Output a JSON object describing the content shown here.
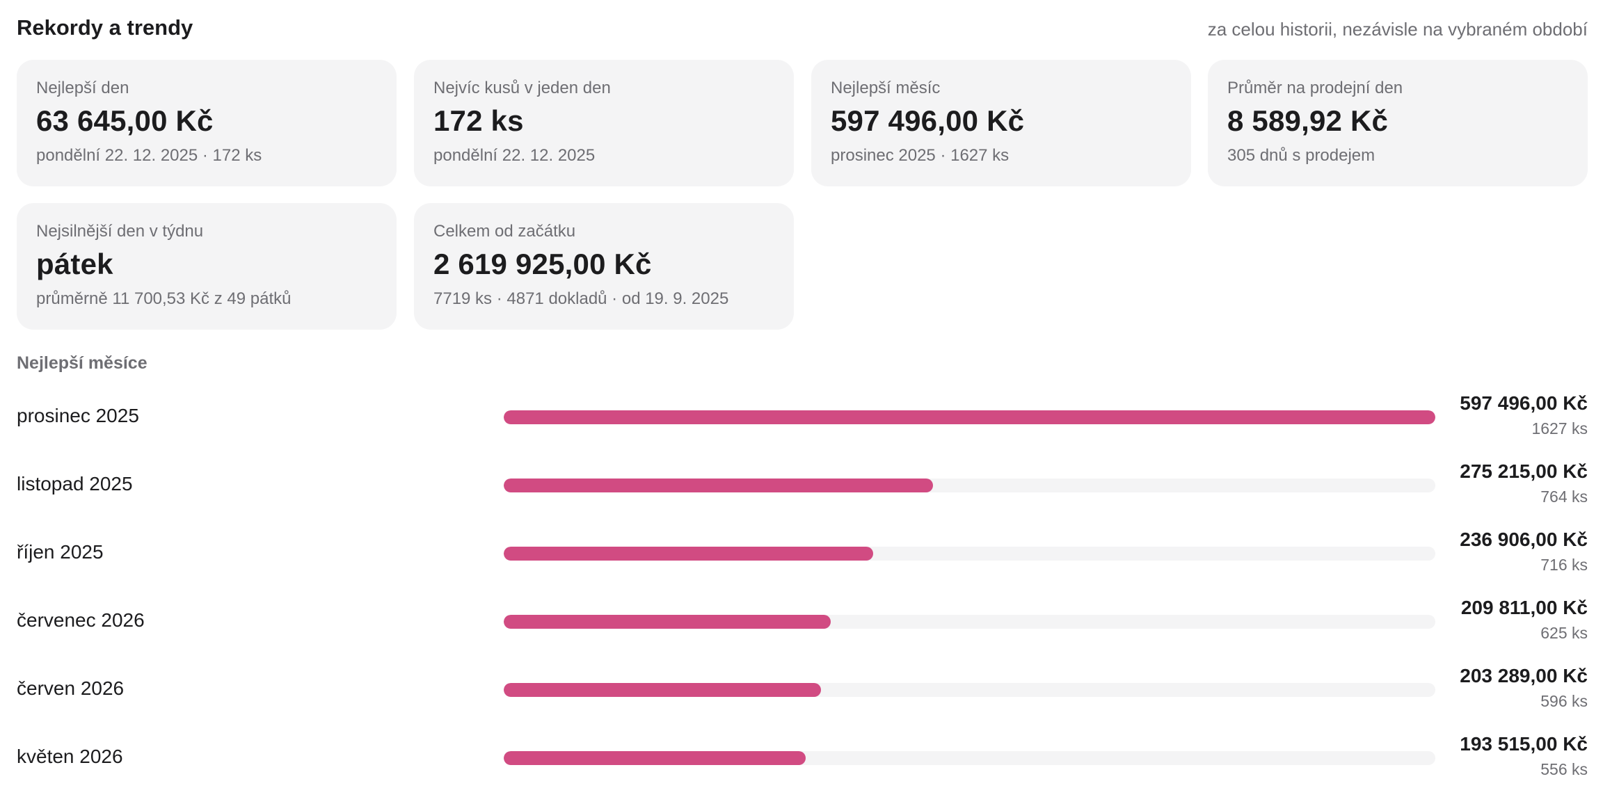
{
  "header": {
    "title": "Rekordy a trendy",
    "subtitle": "za celou historii, nezávisle na vybraném období"
  },
  "cards": [
    {
      "label": "Nejlepší den",
      "value": "63 645,00 Kč",
      "detail": "pondělní 22. 12. 2025 · 172 ks"
    },
    {
      "label": "Nejvíc kusů v jeden den",
      "value": "172 ks",
      "detail": "pondělní 22. 12. 2025"
    },
    {
      "label": "Nejlepší měsíc",
      "value": "597 496,00 Kč",
      "detail": "prosinec 2025 · 1627 ks"
    },
    {
      "label": "Průměr na prodejní den",
      "value": "8 589,92 Kč",
      "detail": "305 dnů s prodejem"
    },
    {
      "label": "Nejsilnější den v týdnu",
      "value": "pátek",
      "detail": "průměrně 11 700,53 Kč z 49 pátků"
    },
    {
      "label": "Celkem od začátku",
      "value": "2 619 925,00 Kč",
      "detail": "7719 ks · 4871 dokladů · od 19. 9. 2025"
    }
  ],
  "best_months": {
    "title": "Nejlepší měsíce",
    "accent_color": "#d14b82",
    "track_color": "#f4f4f5",
    "rows": [
      {
        "label": "prosinec 2025",
        "amount": "597 496,00 Kč",
        "qty": "1627 ks",
        "value": 597496.0
      },
      {
        "label": "listopad 2025",
        "amount": "275 215,00 Kč",
        "qty": "764 ks",
        "value": 275215.0
      },
      {
        "label": "říjen 2025",
        "amount": "236 906,00 Kč",
        "qty": "716 ks",
        "value": 236906.0
      },
      {
        "label": "červenec 2026",
        "amount": "209 811,00 Kč",
        "qty": "625 ks",
        "value": 209811.0
      },
      {
        "label": "červen 2026",
        "amount": "203 289,00 Kč",
        "qty": "596 ks",
        "value": 203289.0
      },
      {
        "label": "květen 2026",
        "amount": "193 515,00 Kč",
        "qty": "556 ks",
        "value": 193515.0
      }
    ]
  }
}
